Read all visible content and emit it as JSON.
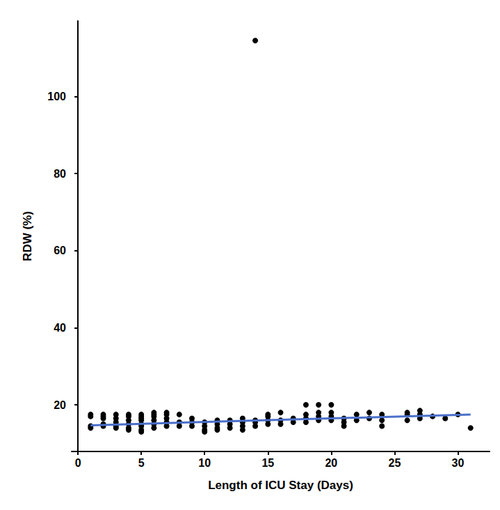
{
  "chart_data": {
    "type": "scatter",
    "x_label": "Length of ICU Stay (Days)",
    "y_label": "RDW (%)",
    "xlim": [
      -0.5,
      32.5
    ],
    "xticks": [
      0,
      5,
      10,
      15,
      20,
      25,
      30
    ],
    "ylim": [
      7.9,
      119.6
    ],
    "yticks": [
      20,
      40,
      60,
      80,
      100
    ],
    "grid": false,
    "series": [
      {
        "type": "scatter",
        "color": "#000000",
        "marker": "circle",
        "values": [
          [
            1,
            14
          ],
          [
            1,
            14.5
          ],
          [
            1,
            17
          ],
          [
            1,
            17.5
          ],
          [
            2,
            14.5
          ],
          [
            2,
            15
          ],
          [
            2,
            16.5
          ],
          [
            2,
            17
          ],
          [
            2,
            17.5
          ],
          [
            3,
            14
          ],
          [
            3,
            14.5
          ],
          [
            3,
            15.5
          ],
          [
            3,
            16.5
          ],
          [
            3,
            17.5
          ],
          [
            4,
            13.5
          ],
          [
            4,
            14
          ],
          [
            4,
            15
          ],
          [
            4,
            16
          ],
          [
            4,
            17
          ],
          [
            4,
            17.5
          ],
          [
            5,
            13
          ],
          [
            5,
            13.5
          ],
          [
            5,
            14.5
          ],
          [
            5,
            15
          ],
          [
            5,
            16
          ],
          [
            5,
            16.5
          ],
          [
            5,
            17
          ],
          [
            5,
            17.5
          ],
          [
            6,
            14
          ],
          [
            6,
            15
          ],
          [
            6,
            16
          ],
          [
            6,
            17
          ],
          [
            6,
            17.5
          ],
          [
            6,
            18
          ],
          [
            7,
            14.5
          ],
          [
            7,
            15.5
          ],
          [
            7,
            16.5
          ],
          [
            7,
            17.5
          ],
          [
            7,
            18
          ],
          [
            8,
            14.5
          ],
          [
            8,
            15.5
          ],
          [
            8,
            17.5
          ],
          [
            9,
            14.5
          ],
          [
            9,
            15.5
          ],
          [
            9,
            16.5
          ],
          [
            10,
            13
          ],
          [
            10,
            13.5
          ],
          [
            10,
            14.5
          ],
          [
            10,
            15.5
          ],
          [
            11,
            13.5
          ],
          [
            11,
            14
          ],
          [
            11,
            15
          ],
          [
            11,
            16
          ],
          [
            12,
            14
          ],
          [
            12,
            15
          ],
          [
            12,
            16
          ],
          [
            13,
            13.5
          ],
          [
            13,
            14.5
          ],
          [
            13,
            15.5
          ],
          [
            13,
            16.5
          ],
          [
            14,
            14.5
          ],
          [
            14,
            15.5
          ],
          [
            14,
            16
          ],
          [
            14,
            114.5
          ],
          [
            15,
            15
          ],
          [
            15,
            16
          ],
          [
            15,
            17
          ],
          [
            15,
            17.5
          ],
          [
            16,
            15
          ],
          [
            16,
            16
          ],
          [
            16,
            18
          ],
          [
            17,
            15.5
          ],
          [
            17,
            16.5
          ],
          [
            18,
            15.5
          ],
          [
            18,
            16.5
          ],
          [
            18,
            17.5
          ],
          [
            18,
            20
          ],
          [
            19,
            16
          ],
          [
            19,
            17
          ],
          [
            19,
            18
          ],
          [
            19,
            20
          ],
          [
            20,
            16
          ],
          [
            20,
            17
          ],
          [
            20,
            18
          ],
          [
            20,
            20
          ],
          [
            21,
            14.5
          ],
          [
            21,
            15.5
          ],
          [
            21,
            16.5
          ],
          [
            22,
            16
          ],
          [
            22,
            17.5
          ],
          [
            23,
            16.5
          ],
          [
            23,
            18
          ],
          [
            24,
            14.5
          ],
          [
            24,
            16
          ],
          [
            24,
            17.5
          ],
          [
            26,
            16
          ],
          [
            26,
            17.5
          ],
          [
            26,
            18
          ],
          [
            27,
            16.5
          ],
          [
            27,
            17.5
          ],
          [
            27,
            18.5
          ],
          [
            28,
            17
          ],
          [
            29,
            16.5
          ],
          [
            30,
            17.5
          ],
          [
            31,
            14
          ]
        ]
      },
      {
        "type": "line",
        "color": "#4a6fc9",
        "line_style": "solid",
        "values": [
          [
            1,
            14.7
          ],
          [
            31,
            17.5
          ]
        ]
      }
    ]
  }
}
